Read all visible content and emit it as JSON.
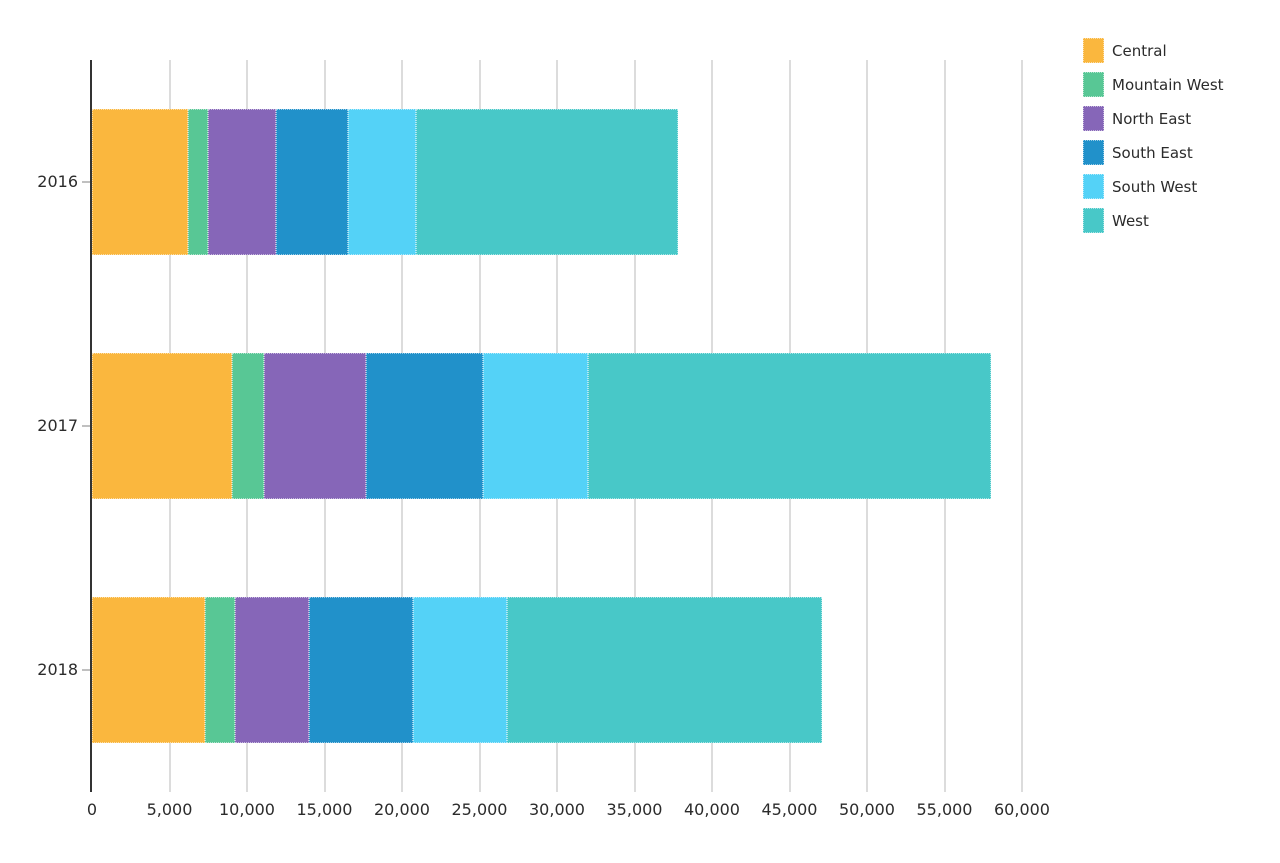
{
  "chart_data": {
    "type": "bar",
    "orientation": "horizontal",
    "stacked": true,
    "title": "",
    "categories": [
      "2016",
      "2017",
      "2018"
    ],
    "series": [
      {
        "name": "Central",
        "color": "#FAB73E",
        "values": [
          6200,
          9000,
          7300
        ]
      },
      {
        "name": "Mountain West",
        "color": "#58C795",
        "values": [
          1300,
          2100,
          1900
        ]
      },
      {
        "name": "North East",
        "color": "#8666B8",
        "values": [
          4400,
          6600,
          4800
        ]
      },
      {
        "name": "South East",
        "color": "#2191CA",
        "values": [
          4600,
          7500,
          6700
        ]
      },
      {
        "name": "South West",
        "color": "#54D2F7",
        "values": [
          4400,
          6800,
          6100
        ]
      },
      {
        "name": "West",
        "color": "#48C8C8",
        "values": [
          16900,
          26000,
          20300
        ]
      }
    ],
    "totals": [
      37800,
      58000,
      47100
    ],
    "x_axis": {
      "min": 0,
      "max": 60000,
      "tick_interval": 5000,
      "tick_labels": [
        "0",
        "5,000",
        "10,000",
        "15,000",
        "20,000",
        "25,000",
        "30,000",
        "35,000",
        "40,000",
        "45,000",
        "50,000",
        "55,000",
        "60,000"
      ]
    },
    "y_axis": {
      "tick_labels": [
        "2016",
        "2017",
        "2018"
      ]
    },
    "legend": {
      "position": "top-right",
      "entries": [
        "Central",
        "Mountain West",
        "North East",
        "South East",
        "South West",
        "West"
      ]
    },
    "grid": true
  },
  "colors": {
    "background": "#FFFFFF",
    "axis_line": "#333333",
    "gridline": "#DCDCDC",
    "tick": "#C0C0C0",
    "text": "#2B2B2B"
  }
}
